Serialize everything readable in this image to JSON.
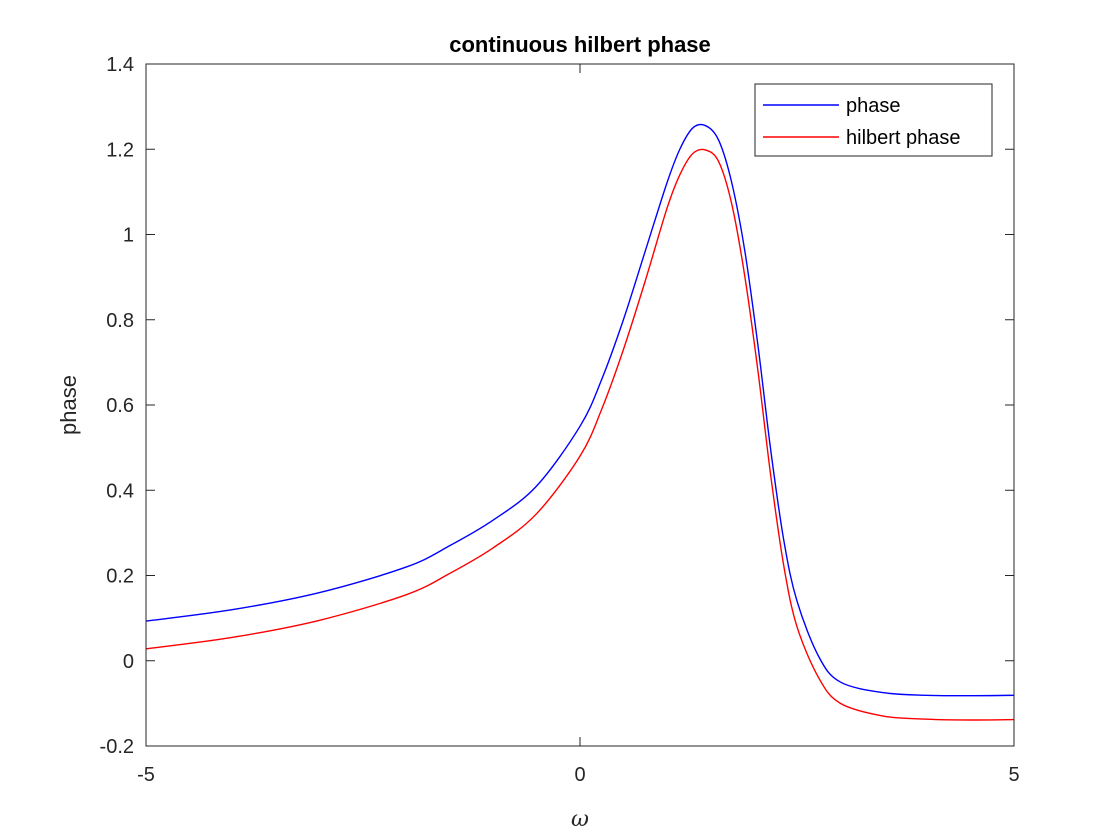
{
  "chart_data": {
    "type": "line",
    "title": "continuous hilbert phase",
    "xlabel": "ω",
    "ylabel": "phase",
    "xlim": [
      -5,
      5
    ],
    "ylim": [
      -0.2,
      1.4
    ],
    "xticks": [
      -5,
      0,
      5
    ],
    "xtick_labels": [
      "-5",
      "0",
      "5"
    ],
    "yticks": [
      -0.2,
      0,
      0.2,
      0.4,
      0.6,
      0.8,
      1,
      1.2,
      1.4
    ],
    "ytick_labels": [
      "-0.2",
      "0",
      "0.2",
      "0.4",
      "0.6",
      "0.8",
      "1",
      "1.2",
      "1.4"
    ],
    "grid": false,
    "legend_position": "top-right",
    "series": [
      {
        "name": "phase",
        "color": "#0000ff",
        "x": [
          -5,
          -4,
          -3,
          -2,
          -1.5,
          -1,
          -0.5,
          0,
          0.25,
          0.5,
          0.75,
          1,
          1.15,
          1.3,
          1.45,
          1.6,
          1.75,
          1.9,
          2.05,
          2.2,
          2.35,
          2.5,
          2.75,
          3,
          3.5,
          4,
          4.5,
          5
        ],
        "y": [
          0.093,
          0.12,
          0.16,
          0.22,
          0.27,
          0.33,
          0.41,
          0.55,
          0.66,
          0.8,
          0.96,
          1.12,
          1.2,
          1.25,
          1.255,
          1.22,
          1.12,
          0.96,
          0.74,
          0.49,
          0.28,
          0.14,
          0.01,
          -0.05,
          -0.075,
          -0.081,
          -0.082,
          -0.081
        ]
      },
      {
        "name": "hilbert phase",
        "color": "#ff0000",
        "x": [
          -5,
          -4,
          -3,
          -2,
          -1.5,
          -1,
          -0.5,
          0,
          0.25,
          0.5,
          0.75,
          1,
          1.15,
          1.3,
          1.45,
          1.6,
          1.75,
          1.9,
          2.05,
          2.2,
          2.35,
          2.5,
          2.75,
          3,
          3.5,
          4,
          4.5,
          5
        ],
        "y": [
          0.028,
          0.055,
          0.095,
          0.155,
          0.205,
          0.265,
          0.345,
          0.48,
          0.59,
          0.73,
          0.89,
          1.06,
          1.14,
          1.19,
          1.198,
          1.17,
          1.07,
          0.9,
          0.68,
          0.43,
          0.22,
          0.08,
          -0.04,
          -0.1,
          -0.13,
          -0.137,
          -0.139,
          -0.138
        ]
      }
    ]
  }
}
